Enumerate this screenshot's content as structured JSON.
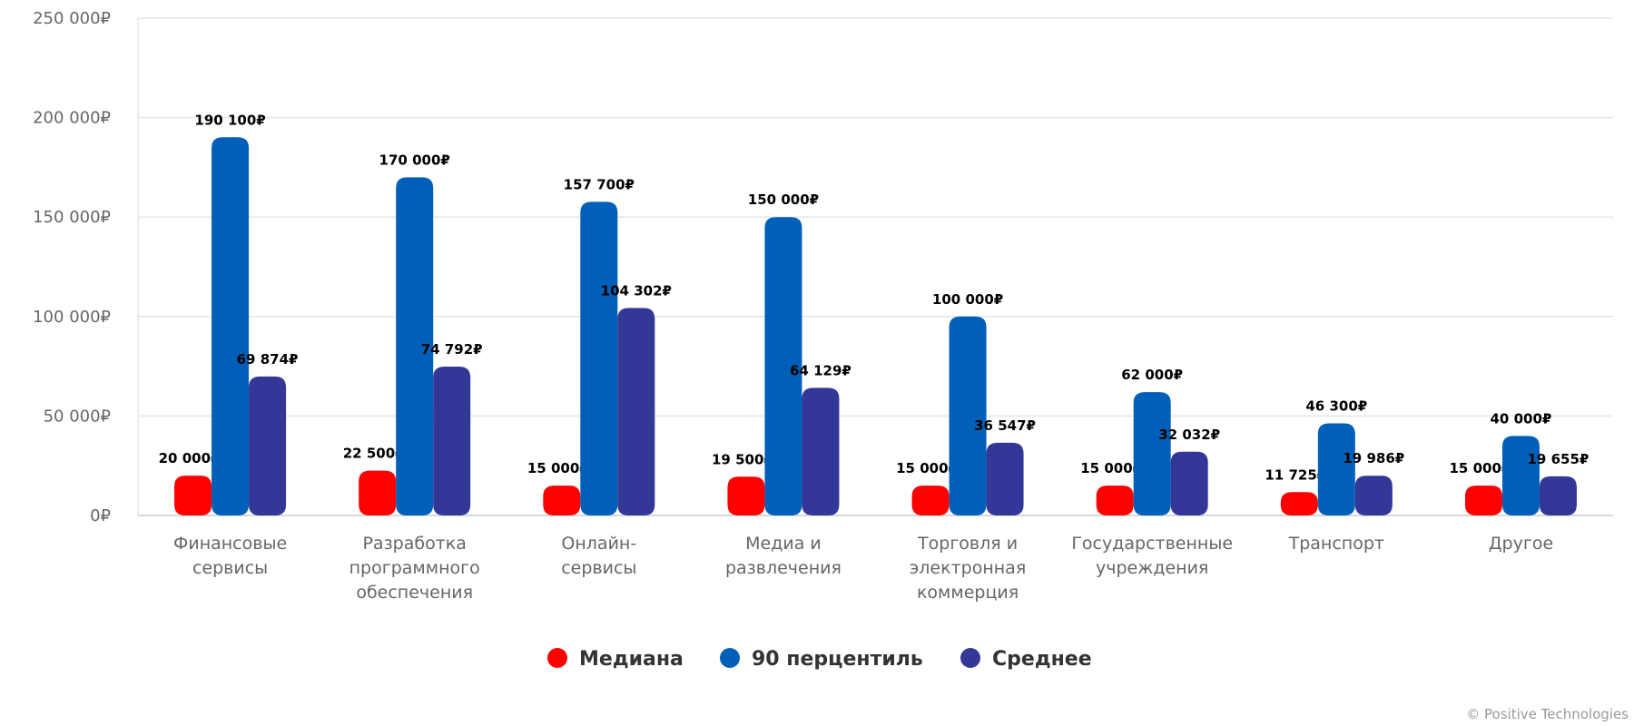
{
  "chart_data": {
    "type": "bar",
    "title": "",
    "xlabel": "",
    "ylabel": "",
    "ylim": [
      0,
      250000
    ],
    "yticks": [
      0,
      50000,
      100000,
      150000,
      200000,
      250000
    ],
    "ytick_labels": [
      "0₽",
      "50 000₽",
      "100 000₽",
      "150 000₽",
      "200 000₽",
      "250 000₽"
    ],
    "grid": true,
    "legend_position": "bottom",
    "categories": [
      [
        "Финансовые",
        "сервисы"
      ],
      [
        "Разработка",
        "программного",
        "обеспечения"
      ],
      [
        "Онлайн-",
        "сервисы"
      ],
      [
        "Медиа и",
        "развлечения"
      ],
      [
        "Торговля и",
        "электронная",
        "коммерция"
      ],
      [
        "Государственные",
        "учреждения"
      ],
      [
        "Транспорт"
      ],
      [
        "Другое"
      ]
    ],
    "series": [
      {
        "name": "Медиана",
        "color": "#ff0000",
        "values": [
          20000,
          22500,
          15000,
          19500,
          15000,
          15000,
          11725,
          15000
        ],
        "labels": [
          "20 000₽",
          "22 500₽",
          "15 000₽",
          "19 500₽",
          "15 000₽",
          "15 000₽",
          "11 725₽",
          "15 000₽"
        ]
      },
      {
        "name": "90 перцентиль",
        "color": "#0060b9",
        "values": [
          190100,
          170000,
          157700,
          150000,
          100000,
          62000,
          46300,
          40000
        ],
        "labels": [
          "190 100₽",
          "170 000₽",
          "157 700₽",
          "150 000₽",
          "100 000₽",
          "62 000₽",
          "46 300₽",
          "40 000₽"
        ]
      },
      {
        "name": "Среднее",
        "color": "#333797",
        "values": [
          69874,
          74792,
          104302,
          64129,
          36547,
          32032,
          19986,
          19655
        ],
        "labels": [
          "69 874₽",
          "74 792₽",
          "104 302₽",
          "64 129₽",
          "36 547₽",
          "32 032₽",
          "19 986₽",
          "19 655₽"
        ]
      }
    ]
  },
  "copyright": "© Positive Technologies"
}
